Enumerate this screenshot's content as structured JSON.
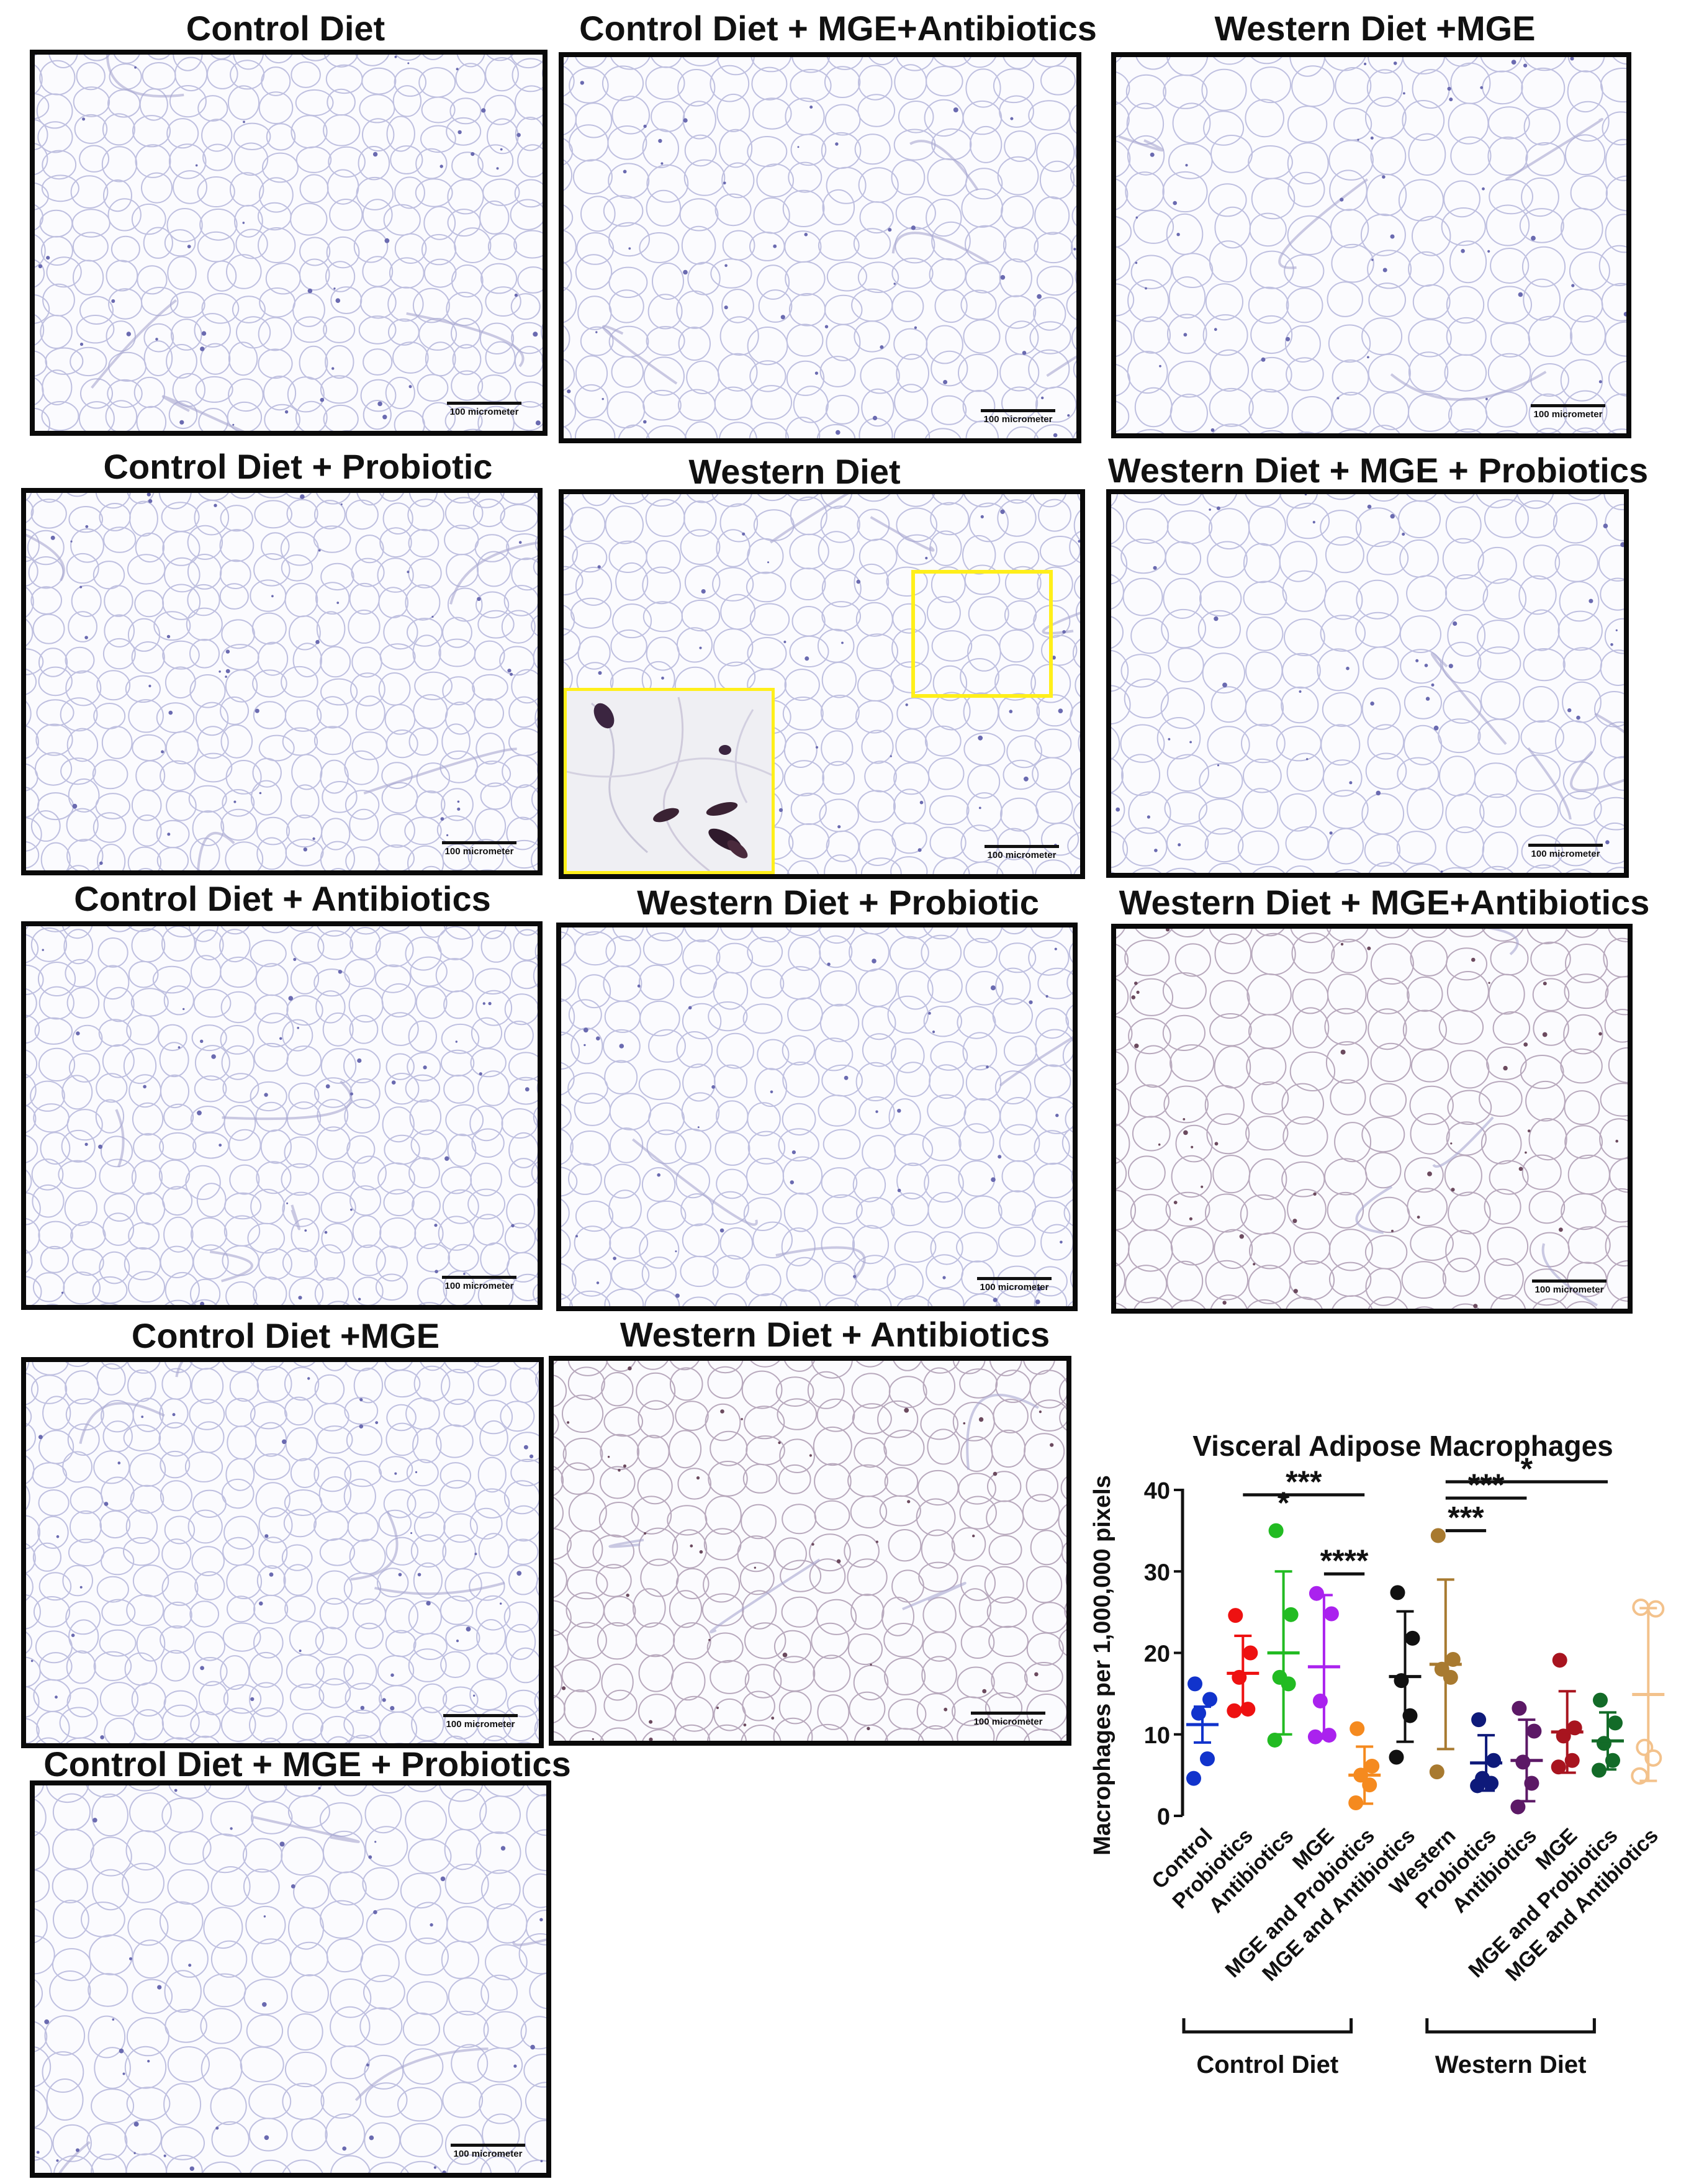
{
  "scale_bar_label": "100 micrometer",
  "panels": [
    {
      "id": "p1",
      "title": "Control Diet"
    },
    {
      "id": "p2",
      "title": "Control Diet + MGE+Antibiotics"
    },
    {
      "id": "p3",
      "title": "Western Diet +MGE"
    },
    {
      "id": "p4",
      "title": "Control Diet + Probiotic"
    },
    {
      "id": "p5",
      "title": "Western Diet"
    },
    {
      "id": "p6",
      "title": "Western Diet + MGE + Probiotics"
    },
    {
      "id": "p7",
      "title": "Control Diet + Antibiotics"
    },
    {
      "id": "p8",
      "title": "Western Diet + Probiotic"
    },
    {
      "id": "p9",
      "title": "Western Diet + MGE+Antibiotics"
    },
    {
      "id": "p10",
      "title": "Control Diet +MGE"
    },
    {
      "id": "p11",
      "title": "Western Diet + Antibiotics"
    },
    {
      "id": "p12",
      "title": "Control Diet + MGE + Probiotics"
    }
  ],
  "chart_data": {
    "type": "scatter",
    "title": "Visceral Adipose Macrophages",
    "ylabel": "Macrophages per 1,000,000 pixels",
    "ylim": [
      0,
      40
    ],
    "yticks": [
      0,
      10,
      20,
      30,
      40
    ],
    "categories": [
      "Control",
      "Probiotics",
      "Antibiotics",
      "MGE",
      "MGE and Probiotics",
      "MGE and Antibiotics",
      "Western",
      "Probiotics",
      "Antibiotics",
      "MGE",
      "MGE and Probiotics",
      "MGE and Antibiotics"
    ],
    "group_labels": [
      {
        "label": "Control Diet",
        "from": 0,
        "to": 5
      },
      {
        "label": "Western Diet",
        "from": 6,
        "to": 11
      }
    ],
    "series": [
      {
        "color": "#1133cc",
        "filled": true,
        "mean": 11.2,
        "sd": 2.2,
        "points": [
          16.2,
          14.3,
          12.6,
          7.0,
          4.6
        ]
      },
      {
        "color": "#ee1111",
        "filled": true,
        "mean": 17.5,
        "sd": 4.6,
        "points": [
          24.6,
          20.0,
          17.0,
          13.1,
          12.9
        ]
      },
      {
        "color": "#22bb22",
        "filled": true,
        "mean": 20.0,
        "sd": 10.0,
        "points": [
          35.0,
          24.7,
          17.0,
          16.2,
          9.3
        ]
      },
      {
        "color": "#aa22ee",
        "filled": true,
        "mean": 18.3,
        "sd": 8.8,
        "points": [
          27.3,
          24.8,
          14.1,
          9.9,
          9.7
        ]
      },
      {
        "color": "#f58a1f",
        "filled": true,
        "mean": 5.0,
        "sd": 3.5,
        "points": [
          10.7,
          6.1,
          5.0,
          3.8,
          1.6
        ]
      },
      {
        "color": "#111111",
        "filled": true,
        "mean": 17.1,
        "sd": 8.0,
        "points": [
          27.4,
          21.8,
          16.6,
          12.3,
          7.2
        ]
      },
      {
        "color": "#a87a30",
        "filled": true,
        "mean": 18.6,
        "sd": 10.4,
        "points": [
          34.4,
          19.2,
          18.0,
          17.0,
          5.4
        ]
      },
      {
        "color": "#0e1a7a",
        "filled": true,
        "mean": 6.5,
        "sd": 3.4,
        "points": [
          11.8,
          6.8,
          4.6,
          4.0,
          3.7
        ]
      },
      {
        "color": "#5c1966",
        "filled": true,
        "mean": 6.8,
        "sd": 5.0,
        "points": [
          13.2,
          10.4,
          6.6,
          4.0,
          1.1
        ]
      },
      {
        "color": "#a8141f",
        "filled": true,
        "mean": 10.3,
        "sd": 5.0,
        "points": [
          19.1,
          10.8,
          9.8,
          6.8,
          6.0
        ]
      },
      {
        "color": "#136b28",
        "filled": true,
        "mean": 9.2,
        "sd": 3.5,
        "points": [
          14.2,
          11.4,
          8.9,
          6.8,
          5.6
        ]
      },
      {
        "color": "#f3c28c",
        "filled": false,
        "mean": 14.9,
        "sd": 10.6,
        "points": [
          25.6,
          25.4,
          8.4,
          7.1,
          4.9
        ]
      }
    ],
    "significance": [
      {
        "label": "***",
        "from": 1,
        "to": 4,
        "y": 39.4
      },
      {
        "label": "*",
        "from": 2,
        "to": 2,
        "y": 36.8
      },
      {
        "label": "****",
        "from": 3,
        "to": 4,
        "y": 29.7
      },
      {
        "label": "*",
        "from": 6,
        "to": 10,
        "y": 41.0
      },
      {
        "label": "***",
        "from": 6,
        "to": 8,
        "y": 39.0
      },
      {
        "label": "***",
        "from": 6,
        "to": 7,
        "y": 35.0
      }
    ]
  }
}
